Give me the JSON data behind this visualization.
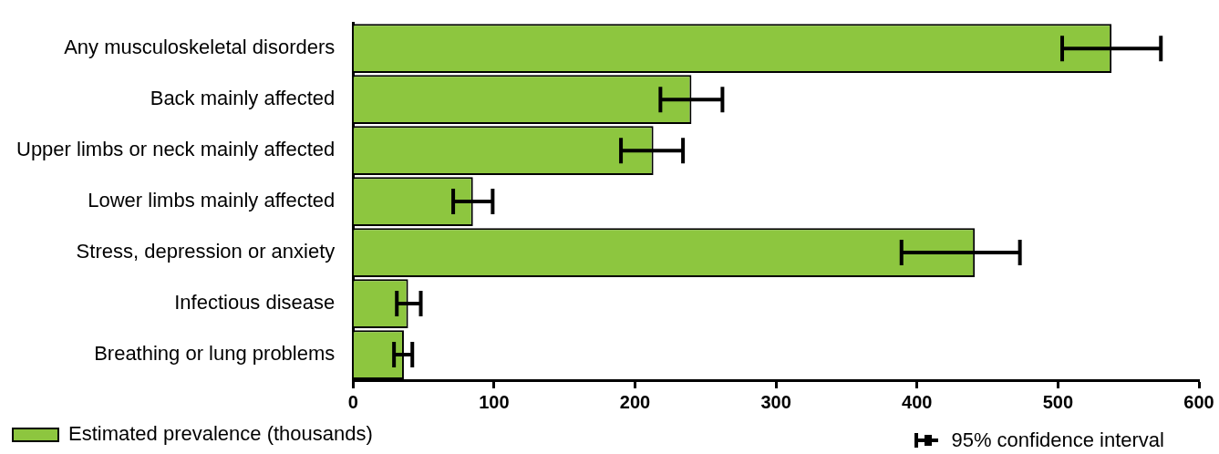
{
  "chart_data": {
    "type": "bar",
    "orientation": "horizontal",
    "categories": [
      "Any musculoskeletal disorders",
      "Back mainly affected",
      "Upper limbs or neck mainly affected",
      "Lower limbs mainly affected",
      "Stress, depression or anxiety",
      "Infectious disease",
      "Breathing or lung problems"
    ],
    "series": [
      {
        "name": "Estimated prevalence (thousands)",
        "color": "#8dc63f",
        "values": [
          538,
          240,
          213,
          85,
          441,
          39,
          36
        ],
        "errors": [
          [
            503,
            573
          ],
          [
            218,
            262
          ],
          [
            190,
            234
          ],
          [
            71,
            99
          ],
          [
            389,
            473
          ],
          [
            31,
            48
          ],
          [
            29,
            42
          ]
        ]
      }
    ],
    "xlim": [
      0,
      600
    ],
    "xticks": [
      0,
      100,
      200,
      300,
      400,
      500,
      600
    ],
    "grid": false,
    "legend": "bottom",
    "annotations": [
      "95% confidence interval"
    ]
  }
}
